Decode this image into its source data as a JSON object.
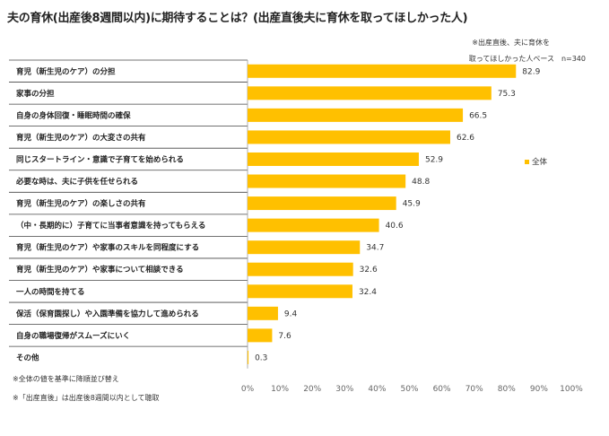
{
  "title": "夫の育休(出産後8週間以内)に期待することは？(出産直後夫に育休を取ってほしかった人)",
  "notes": {
    "base_line1": "※出産直後、夫に育休を",
    "base_line2": "取ってほしかった人ベース　n=340"
  },
  "footnotes": [
    "※全体の値を基準に降順並び替え",
    "※「出産直後」は出産後8週間以内として聴取"
  ],
  "colors": {
    "bar": "#FFC000",
    "axis": "#999999",
    "separator": "#444444"
  },
  "chart_data": {
    "type": "bar",
    "orientation": "horizontal",
    "title": "夫の育休(出産後8週間以内)に期待することは？(出産直後夫に育休を取ってほしかった人)",
    "categories": [
      "育児（新生児のケア）の分担",
      "家事の分担",
      "自身の身体回復・睡眠時間の確保",
      "育児（新生児のケア）の大変さの共有",
      "同じスタートライン・意識で子育てを始められる",
      "必要な時は、夫に子供を任せられる",
      "育児（新生児のケア）の楽しさの共有",
      "（中・長期的に）子育てに当事者意識を持ってもらえる",
      "育児（新生児のケア）や家事のスキルを同程度にする",
      "育児（新生児のケア）や家事について相談できる",
      "一人の時間を持てる",
      "保活（保育園探し）や入園準備を協力して進められる",
      "自身の職場復帰がスムーズにいく",
      "その他"
    ],
    "series": [
      {
        "name": "全体",
        "values": [
          82.9,
          75.3,
          66.5,
          62.6,
          52.9,
          48.8,
          45.9,
          40.6,
          34.7,
          32.6,
          32.4,
          9.4,
          7.6,
          0.3
        ]
      }
    ],
    "value_labels": [
      "82.9",
      "75.3",
      "66.5",
      "62.6",
      "52.9",
      "48.8",
      "45.9",
      "40.6",
      "34.7",
      "32.6",
      "32.4",
      "9.4",
      "7.6",
      "0.3"
    ],
    "xlim": [
      0,
      100
    ],
    "xticks": [
      "0%",
      "10%",
      "20%",
      "30%",
      "40%",
      "50%",
      "60%",
      "70%",
      "80%",
      "90%",
      "100%"
    ],
    "xlabel": "",
    "ylabel": "",
    "legend": {
      "entries": [
        "全体"
      ],
      "position": "right"
    },
    "grid": false
  }
}
